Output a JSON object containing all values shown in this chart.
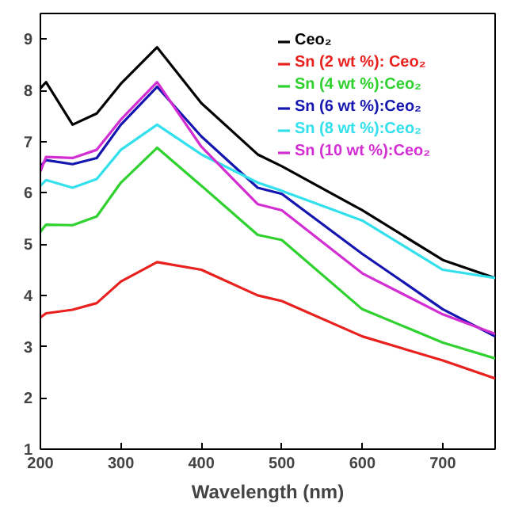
{
  "chart_data": {
    "type": "line",
    "xlabel": "Wavelength (nm)",
    "xlim": [
      200,
      765
    ],
    "xticks": [
      200,
      300,
      400,
      500,
      600,
      700
    ],
    "ylim": [
      1,
      9.5
    ],
    "yticks": [
      1,
      2,
      3,
      4,
      5,
      6,
      7,
      8,
      9
    ],
    "grid": false,
    "legend": "top right",
    "line_style": "solid",
    "marker": "none",
    "x": [
      200,
      207,
      240,
      270,
      300,
      345,
      400,
      470,
      500,
      600,
      700,
      765
    ],
    "series": [
      {
        "name": "Ceo₂",
        "color": "#000000",
        "values": [
          8.04,
          8.16,
          7.33,
          7.55,
          8.13,
          8.84,
          7.75,
          6.75,
          6.52,
          5.66,
          4.69,
          4.34
        ]
      },
      {
        "name": "Sn (2 wt %): Ceo₂",
        "color": "#e8201e",
        "values": [
          3.57,
          3.65,
          3.72,
          3.85,
          4.27,
          4.65,
          4.5,
          4.0,
          3.89,
          3.2,
          2.73,
          2.38
        ]
      },
      {
        "name": "Sn (4 wt %):Ceo₂",
        "color": "#2ed12e",
        "values": [
          5.24,
          5.38,
          5.37,
          5.54,
          6.2,
          6.88,
          6.14,
          5.18,
          5.08,
          3.73,
          3.08,
          2.77
        ]
      },
      {
        "name": "Sn (6 wt %):Ceo₂",
        "color": "#1515b0",
        "values": [
          6.52,
          6.64,
          6.56,
          6.68,
          7.33,
          8.07,
          7.1,
          6.1,
          5.98,
          4.81,
          3.73,
          3.2
        ]
      },
      {
        "name": "Sn (8 wt %):Ceo₂",
        "color": "#33e0ec",
        "values": [
          6.14,
          6.25,
          6.1,
          6.27,
          6.84,
          7.33,
          6.75,
          6.2,
          6.04,
          5.46,
          4.5,
          4.34
        ]
      },
      {
        "name": "Sn (10 wt %):Ceo₂",
        "color": "#d22ed2",
        "values": [
          6.42,
          6.7,
          6.68,
          6.84,
          7.43,
          8.16,
          6.9,
          5.78,
          5.66,
          4.43,
          3.63,
          3.25
        ]
      }
    ]
  }
}
